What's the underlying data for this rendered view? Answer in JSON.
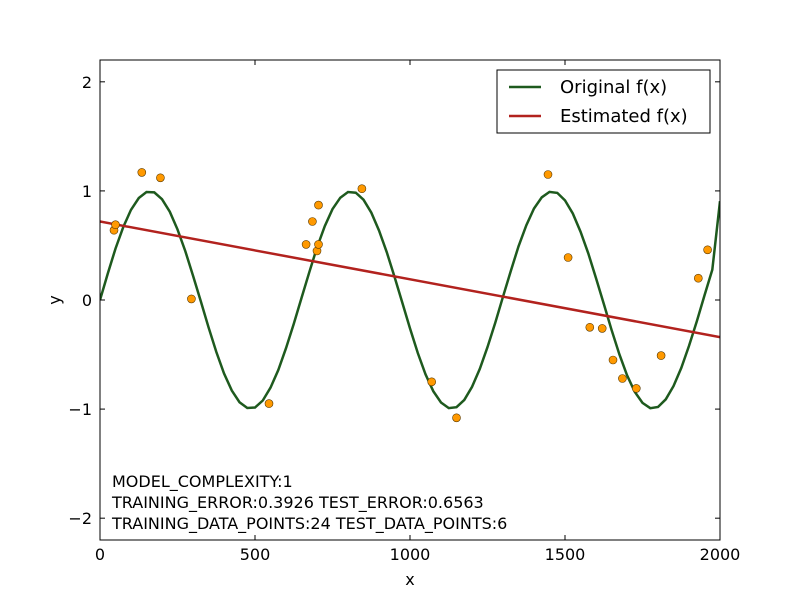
{
  "chart_data": {
    "type": "scatter",
    "title": "",
    "xlabel": "x",
    "ylabel": "y",
    "xlim": [
      0,
      2000
    ],
    "ylim": [
      -2.2,
      2.2
    ],
    "x_ticks": [
      0,
      500,
      1000,
      1500,
      2000
    ],
    "x_tick_labels": [
      "0",
      "500",
      "1000",
      "1500",
      "2000"
    ],
    "y_ticks": [
      -2,
      -1,
      0,
      1,
      2
    ],
    "y_tick_labels": [
      "−2",
      "−1",
      "0",
      "1",
      "2"
    ],
    "grid": false,
    "legend": {
      "placement": "top-right",
      "entries": [
        "Original f(x)",
        "Estimated f(x)"
      ]
    },
    "series": [
      {
        "name": "Original f(x)",
        "kind": "line",
        "color": "#1e5a1e",
        "x": [
          0,
          25,
          50,
          75,
          100,
          125,
          150,
          175,
          200,
          225,
          250,
          275,
          300,
          325,
          350,
          375,
          400,
          425,
          450,
          475,
          500,
          525,
          550,
          575,
          600,
          625,
          650,
          675,
          700,
          725,
          750,
          775,
          800,
          825,
          850,
          875,
          900,
          925,
          950,
          975,
          1000,
          1025,
          1050,
          1075,
          1100,
          1125,
          1150,
          1175,
          1200,
          1225,
          1250,
          1275,
          1300,
          1325,
          1350,
          1375,
          1400,
          1425,
          1450,
          1475,
          1500,
          1525,
          1550,
          1575,
          1600,
          1625,
          1650,
          1675,
          1700,
          1725,
          1750,
          1775,
          1800,
          1825,
          1850,
          1875,
          1900,
          1925,
          1950,
          1975,
          2000
        ],
        "y": [
          0.0,
          0.243,
          0.471,
          0.669,
          0.827,
          0.935,
          0.99,
          0.986,
          0.924,
          0.809,
          0.647,
          0.448,
          0.224,
          -0.012,
          -0.249,
          -0.476,
          -0.673,
          -0.83,
          -0.937,
          -0.99,
          -0.985,
          -0.921,
          -0.804,
          -0.642,
          -0.442,
          -0.218,
          0.018,
          0.255,
          0.481,
          0.677,
          0.833,
          0.938,
          0.99,
          0.984,
          0.919,
          0.801,
          0.637,
          0.437,
          0.213,
          -0.024,
          -0.26,
          -0.486,
          -0.681,
          -0.836,
          -0.94,
          -0.991,
          -0.983,
          -0.916,
          -0.797,
          -0.632,
          -0.432,
          -0.207,
          0.03,
          0.266,
          0.491,
          0.685,
          0.839,
          0.941,
          0.991,
          0.982,
          0.913,
          0.793,
          0.627,
          0.427,
          0.201,
          -0.036,
          -0.272,
          -0.496,
          -0.689,
          -0.842,
          -0.943,
          -0.992,
          -0.981,
          -0.91,
          -0.789,
          -0.622,
          -0.421,
          -0.196,
          0.042,
          0.277,
          0.906
        ]
      },
      {
        "name": "Estimated f(x)",
        "kind": "line",
        "color": "#b2221e",
        "x": [
          0,
          2000
        ],
        "y": [
          0.72,
          -0.34
        ]
      },
      {
        "kind": "scatter",
        "color": "#ff9900",
        "x": [
          45,
          50,
          135,
          195,
          295,
          545,
          665,
          685,
          700,
          705,
          705,
          845,
          1070,
          1150,
          1445,
          1510,
          1580,
          1620,
          1655,
          1685,
          1730,
          1810,
          1930,
          1960
        ],
        "y": [
          0.64,
          0.69,
          1.17,
          1.12,
          0.01,
          -0.95,
          0.51,
          0.72,
          0.45,
          0.51,
          0.87,
          1.02,
          -0.75,
          -1.08,
          1.15,
          0.39,
          -0.25,
          -0.26,
          -0.55,
          -0.72,
          -0.81,
          -0.51,
          0.2,
          0.46
        ]
      }
    ],
    "annotations": [
      "MODEL_COMPLEXITY:1",
      "TRAINING_ERROR:0.3926 TEST_ERROR:0.6563",
      "TRAINING_DATA_POINTS:24 TEST_DATA_POINTS:6"
    ]
  }
}
